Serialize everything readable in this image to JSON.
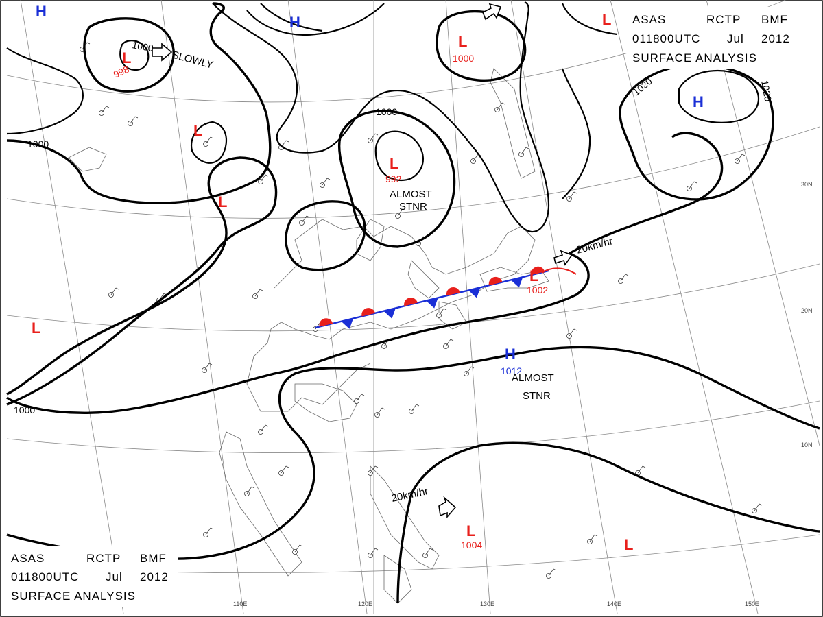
{
  "header_top": {
    "line1_a": "ASAS",
    "line1_b": "RCTP",
    "line1_c": "BMF",
    "line2_a": "011800UTC",
    "line2_b": "Jul",
    "line2_c": "2012",
    "line3": "SURFACE  ANALYSIS"
  },
  "header_bottom": {
    "line1_a": "ASAS",
    "line1_b": "RCTP",
    "line1_c": "BMF",
    "line2_a": "011800UTC",
    "line2_b": "Jul",
    "line2_c": "2012",
    "line3": "SURFACE  ANALYSIS"
  },
  "colors": {
    "low": "#e8201c",
    "high": "#1a2fd6",
    "isobar": "#000000",
    "grid": "#8a8a8a",
    "warm_front": "#e8201c",
    "cold_front": "#1a2fd6"
  },
  "pressure_systems": [
    {
      "id": "low-998",
      "type": "L",
      "pressure": "998"
    },
    {
      "id": "low-992",
      "type": "L",
      "pressure": "992"
    },
    {
      "id": "low-1000",
      "type": "L",
      "pressure": "1000"
    },
    {
      "id": "low-1002",
      "type": "L",
      "pressure": "1002"
    },
    {
      "id": "low-1004",
      "type": "L",
      "pressure": "1004"
    },
    {
      "id": "high-1012",
      "type": "H",
      "pressure": "1012"
    },
    {
      "id": "low-w1",
      "type": "L",
      "pressure": ""
    },
    {
      "id": "low-w2",
      "type": "L",
      "pressure": ""
    },
    {
      "id": "low-w3",
      "type": "L",
      "pressure": ""
    },
    {
      "id": "low-ne",
      "type": "L",
      "pressure": ""
    },
    {
      "id": "low-se",
      "type": "L",
      "pressure": ""
    },
    {
      "id": "high-nw",
      "type": "H",
      "pressure": ""
    },
    {
      "id": "high-n",
      "type": "H",
      "pressure": ""
    },
    {
      "id": "high-ne",
      "type": "H",
      "pressure": ""
    }
  ],
  "annotations": {
    "slowly": "SLOWLY",
    "almost_stnr_1_a": "ALMOST",
    "almost_stnr_1_b": "STNR",
    "almost_stnr_2_a": "ALMOST",
    "almost_stnr_2_b": "STNR",
    "speed_east": "20km/hr",
    "speed_south": "20km/hr"
  },
  "isobar_labels": [
    "1000",
    "1000",
    "1000",
    "1000",
    "1020",
    "1020"
  ],
  "longitude_ticks": [
    "110E",
    "120E",
    "130E",
    "140E",
    "150E"
  ],
  "latitude_ticks": [
    "30N",
    "20N",
    "10N"
  ]
}
